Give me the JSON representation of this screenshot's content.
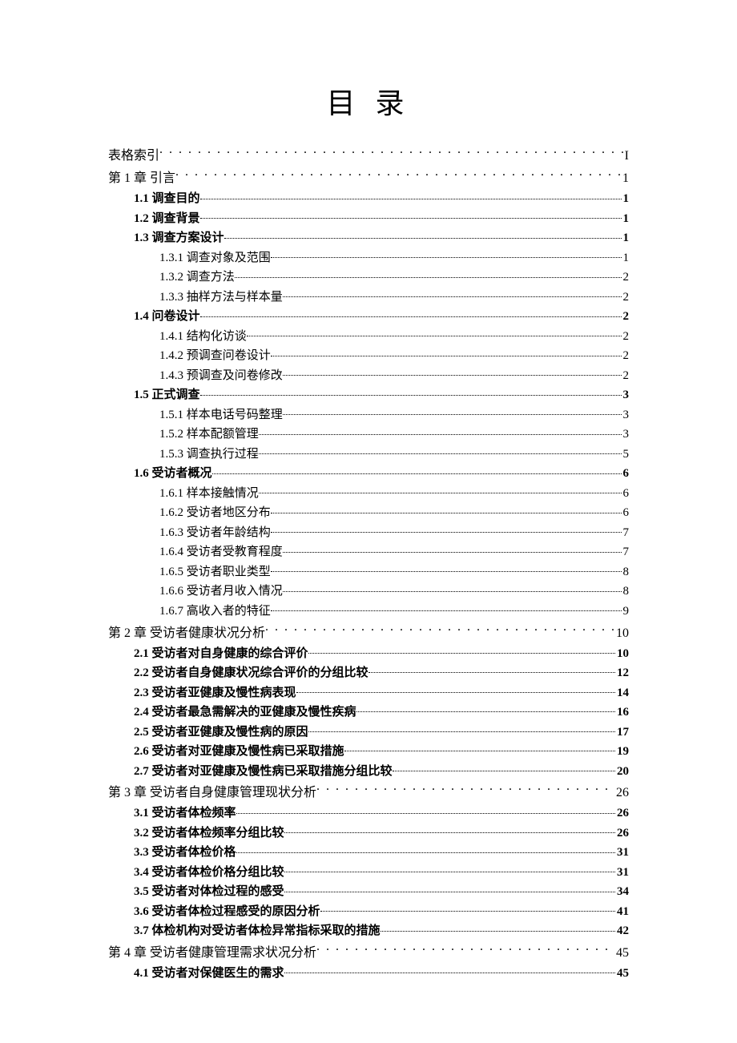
{
  "title": "目 录",
  "text_color": "#000000",
  "background_color": "#ffffff",
  "font_family": "SimSun",
  "title_fontsize": 36,
  "level0_fontsize": 16,
  "level1_fontsize": 15,
  "level2_fontsize": 15,
  "entries": [
    {
      "level": 0,
      "label": "表格索引",
      "page": "I",
      "bold": false
    },
    {
      "level": 0,
      "label": "第 1 章  引言",
      "page": "1",
      "bold": false
    },
    {
      "level": 1,
      "label": "1.1  调查目的",
      "page": "1",
      "bold": true
    },
    {
      "level": 1,
      "label": "1.2  调查背景",
      "page": "1",
      "bold": true
    },
    {
      "level": 1,
      "label": "1.3  调查方案设计",
      "page": "1",
      "bold": true
    },
    {
      "level": 2,
      "label": "1.3.1  调查对象及范围",
      "page": "1",
      "bold": false
    },
    {
      "level": 2,
      "label": "1.3.2  调查方法",
      "page": "2",
      "bold": false
    },
    {
      "level": 2,
      "label": "1.3.3 抽样方法与样本量",
      "page": "2",
      "bold": false
    },
    {
      "level": 1,
      "label": "1.4  问卷设计",
      "page": "2",
      "bold": true
    },
    {
      "level": 2,
      "label": "1.4.1  结构化访谈",
      "page": "2",
      "bold": false
    },
    {
      "level": 2,
      "label": "1.4.2  预调查问卷设计",
      "page": "2",
      "bold": false
    },
    {
      "level": 2,
      "label": "1.4.3  预调查及问卷修改",
      "page": "2",
      "bold": false
    },
    {
      "level": 1,
      "label": "1.5  正式调查",
      "page": "3",
      "bold": true
    },
    {
      "level": 2,
      "label": "1.5.1  样本电话号码整理",
      "page": "3",
      "bold": false
    },
    {
      "level": 2,
      "label": "1.5.2  样本配额管理",
      "page": "3",
      "bold": false
    },
    {
      "level": 2,
      "label": "1.5.3  调查执行过程",
      "page": "5",
      "bold": false
    },
    {
      "level": 1,
      "label": "1.6  受访者概况",
      "page": "6",
      "bold": true
    },
    {
      "level": 2,
      "label": "1.6.1  样本接触情况",
      "page": "6",
      "bold": false
    },
    {
      "level": 2,
      "label": "1.6.2  受访者地区分布",
      "page": "6",
      "bold": false
    },
    {
      "level": 2,
      "label": "1.6.3  受访者年龄结构",
      "page": "7",
      "bold": false
    },
    {
      "level": 2,
      "label": "1.6.4 受访者受教育程度",
      "page": "7",
      "bold": false
    },
    {
      "level": 2,
      "label": "1.6.5  受访者职业类型",
      "page": "8",
      "bold": false
    },
    {
      "level": 2,
      "label": "1.6.6  受访者月收入情况",
      "page": "8",
      "bold": false
    },
    {
      "level": 2,
      "label": "1.6.7 高收入者的特征",
      "page": "9",
      "bold": false
    },
    {
      "level": 0,
      "label": "第 2 章  受访者健康状况分析",
      "page": "10",
      "bold": false
    },
    {
      "level": 1,
      "label": "2.1 受访者对自身健康的综合评价",
      "page": "10",
      "bold": true
    },
    {
      "level": 1,
      "label": "2.2 受访者自身健康状况综合评价的分组比较",
      "page": "12",
      "bold": true
    },
    {
      "level": 1,
      "label": "2.3 受访者亚健康及慢性病表现",
      "page": "14",
      "bold": true
    },
    {
      "level": 1,
      "label": "2.4 受访者最急需解决的亚健康及慢性疾病",
      "page": "16",
      "bold": true
    },
    {
      "level": 1,
      "label": "2.5 受访者亚健康及慢性病的原因",
      "page": "17",
      "bold": true
    },
    {
      "level": 1,
      "label": "2.6 受访者对亚健康及慢性病已采取措施",
      "page": "19",
      "bold": true
    },
    {
      "level": 1,
      "label": "2.7 受访者对亚健康及慢性病已采取措施分组比较",
      "page": "20",
      "bold": true
    },
    {
      "level": 0,
      "label": "第 3 章  受访者自身健康管理现状分析",
      "page": "26",
      "bold": false
    },
    {
      "level": 1,
      "label": "3.1 受访者体检频率",
      "page": "26",
      "bold": true
    },
    {
      "level": 1,
      "label": "3.2 受访者体检频率分组比较",
      "page": "26",
      "bold": true
    },
    {
      "level": 1,
      "label": "3.3 受访者体检价格",
      "page": "31",
      "bold": true
    },
    {
      "level": 1,
      "label": "3.4 受访者体检价格分组比较",
      "page": "31",
      "bold": true
    },
    {
      "level": 1,
      "label": "3.5 受访者对体检过程的感受",
      "page": "34",
      "bold": true
    },
    {
      "level": 1,
      "label": "3.6 受访者体检过程感受的原因分析",
      "page": "41",
      "bold": true
    },
    {
      "level": 1,
      "label": "3.7 体检机构对受访者体检异常指标采取的措施",
      "page": "42",
      "bold": true
    },
    {
      "level": 0,
      "label": "第 4 章  受访者健康管理需求状况分析",
      "page": "45",
      "bold": false
    },
    {
      "level": 1,
      "label": "4.1 受访者对保健医生的需求",
      "page": "45",
      "bold": true
    }
  ]
}
